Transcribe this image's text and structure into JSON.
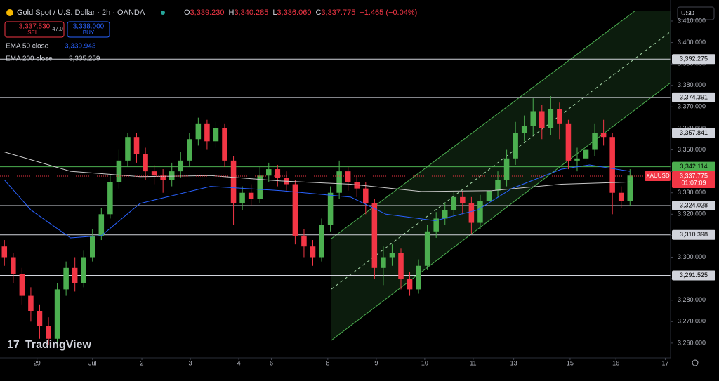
{
  "header": {
    "title": "Gold Spot / U.S. Dollar · 2h · OANDA",
    "ohlc": [
      {
        "k": "O",
        "v": "3,339.230"
      },
      {
        "k": "H",
        "v": "3,340.285"
      },
      {
        "k": "L",
        "v": "3,336.060"
      },
      {
        "k": "C",
        "v": "3,337.775"
      }
    ],
    "change": "−1.465 (−0.04%)",
    "sell_price": "3,337.530",
    "sell": "SELL",
    "spread": "47.0",
    "buy_price": "3,338.000",
    "buy": "BUY",
    "currency": "USD",
    "watermark": "TradingView"
  },
  "chart_data": {
    "type": "candlestick",
    "up_color": "#4caf50",
    "down_color": "#f23645",
    "candles": [
      [
        3305,
        3308,
        3296,
        3300
      ],
      [
        3300,
        3302,
        3288,
        3292
      ],
      [
        3292,
        3295,
        3278,
        3282
      ],
      [
        3282,
        3286,
        3270,
        3275
      ],
      [
        3275,
        3278,
        3262,
        3268
      ],
      [
        3268,
        3272,
        3259,
        3262
      ],
      [
        3262,
        3288,
        3260,
        3285
      ],
      [
        3285,
        3298,
        3282,
        3295
      ],
      [
        3295,
        3300,
        3284,
        3288
      ],
      [
        3288,
        3303,
        3286,
        3300
      ],
      [
        3300,
        3313,
        3298,
        3310
      ],
      [
        3310,
        3323,
        3308,
        3320
      ],
      [
        3320,
        3338,
        3318,
        3335
      ],
      [
        3335,
        3350,
        3332,
        3345
      ],
      [
        3345,
        3358,
        3342,
        3356
      ],
      [
        3356,
        3358,
        3344,
        3348
      ],
      [
        3348,
        3351,
        3336,
        3340
      ],
      [
        3340,
        3343,
        3334,
        3338
      ],
      [
        3338,
        3341,
        3330,
        3336
      ],
      [
        3336,
        3344,
        3333,
        3340
      ],
      [
        3340,
        3349,
        3337,
        3345
      ],
      [
        3345,
        3358,
        3342,
        3355
      ],
      [
        3355,
        3365,
        3352,
        3362
      ],
      [
        3362,
        3364,
        3350,
        3354
      ],
      [
        3354,
        3363,
        3351,
        3360
      ],
      [
        3360,
        3362,
        3342,
        3345
      ],
      [
        3345,
        3347,
        3315,
        3325
      ],
      [
        3325,
        3333,
        3322,
        3330
      ],
      [
        3330,
        3334,
        3324,
        3327
      ],
      [
        3327,
        3342,
        3325,
        3338
      ],
      [
        3338,
        3344,
        3335,
        3341
      ],
      [
        3341,
        3343,
        3333,
        3337
      ],
      [
        3337,
        3340,
        3331,
        3334
      ],
      [
        3334,
        3336,
        3306,
        3310
      ],
      [
        3310,
        3313,
        3300,
        3305
      ],
      [
        3305,
        3308,
        3296,
        3300
      ],
      [
        3300,
        3318,
        3298,
        3315
      ],
      [
        3315,
        3333,
        3312,
        3330
      ],
      [
        3330,
        3345,
        3327,
        3340
      ],
      [
        3340,
        3342,
        3331,
        3335
      ],
      [
        3335,
        3338,
        3328,
        3332
      ],
      [
        3332,
        3335,
        3320,
        3325
      ],
      [
        3325,
        3327,
        3290,
        3295
      ],
      [
        3295,
        3305,
        3287,
        3300
      ],
      [
        3300,
        3306,
        3296,
        3302
      ],
      [
        3302,
        3304,
        3285,
        3290
      ],
      [
        3290,
        3293,
        3282,
        3285
      ],
      [
        3285,
        3299,
        3283,
        3296
      ],
      [
        3296,
        3315,
        3294,
        3312
      ],
      [
        3312,
        3321,
        3309,
        3318
      ],
      [
        3318,
        3325,
        3315,
        3322
      ],
      [
        3322,
        3331,
        3319,
        3328
      ],
      [
        3328,
        3331,
        3320,
        3325
      ],
      [
        3325,
        3328,
        3311,
        3316
      ],
      [
        3316,
        3329,
        3313,
        3326
      ],
      [
        3326,
        3334,
        3323,
        3331
      ],
      [
        3331,
        3340,
        3328,
        3336
      ],
      [
        3336,
        3350,
        3333,
        3346
      ],
      [
        3346,
        3363,
        3343,
        3358
      ],
      [
        3358,
        3366,
        3354,
        3361
      ],
      [
        3361,
        3374,
        3357,
        3368
      ],
      [
        3368,
        3371,
        3355,
        3360
      ],
      [
        3360,
        3375,
        3357,
        3369
      ],
      [
        3369,
        3372,
        3355,
        3362
      ],
      [
        3362,
        3364,
        3341,
        3345
      ],
      [
        3345,
        3351,
        3340,
        3346
      ],
      [
        3346,
        3353,
        3343,
        3350
      ],
      [
        3350,
        3362,
        3347,
        3358
      ],
      [
        3358,
        3364,
        3352,
        3356
      ],
      [
        3356,
        3358,
        3320,
        3330
      ],
      [
        3330,
        3333,
        3323,
        3326
      ],
      [
        3326,
        3341,
        3324,
        3338
      ]
    ],
    "series": [
      {
        "name": "EMA 50 close",
        "last": "3,339.943",
        "color": "#2962ff",
        "x": [
          0,
          3,
          7.5,
          11,
          15.4,
          23.4,
          31.4,
          39.3,
          43.3,
          48.9,
          53.7,
          57.6,
          63.2,
          66.4,
          71
        ],
        "values": [
          3336,
          3322,
          3309,
          3310,
          3325,
          3333,
          3331,
          3328,
          3320,
          3317,
          3322,
          3332,
          3341,
          3343,
          3340
        ]
      },
      {
        "name": "EMA 200 close",
        "last": "3,335.259",
        "color": "#c8c8c8",
        "x": [
          0,
          7.5,
          15.4,
          23.4,
          31.4,
          39.3,
          47.3,
          55.3,
          63.2,
          71
        ],
        "values": [
          3349,
          3340,
          3337.5,
          3338,
          3335.5,
          3334,
          3330.6,
          3331,
          3334,
          3335
        ]
      }
    ],
    "xlim": [
      -0.5,
      75.6
    ],
    "ylim": [
      3253.1,
      3419.8
    ],
    "xticks": [
      {
        "value": 3.7,
        "label": "29"
      },
      {
        "value": 10,
        "label": "Jul"
      },
      {
        "value": 15.6,
        "label": "2"
      },
      {
        "value": 21.1,
        "label": "3"
      },
      {
        "value": 26.6,
        "label": "4"
      },
      {
        "value": 30.3,
        "label": "6"
      },
      {
        "value": 36.7,
        "label": "8"
      },
      {
        "value": 42.2,
        "label": "9"
      },
      {
        "value": 47.7,
        "label": "10"
      },
      {
        "value": 53.2,
        "label": "11"
      },
      {
        "value": 57.8,
        "label": "13"
      },
      {
        "value": 64.2,
        "label": "15"
      },
      {
        "value": 69.4,
        "label": "16"
      },
      {
        "value": 75,
        "label": "17"
      }
    ],
    "yticks": [
      {
        "value": 3260,
        "label": "3,260.000"
      },
      {
        "value": 3270,
        "label": "3,270.000"
      },
      {
        "value": 3280,
        "label": "3,280.000"
      },
      {
        "value": 3290,
        "label": "3,290.000"
      },
      {
        "value": 3300,
        "label": "3,300.000"
      },
      {
        "value": 3310,
        "label": "3,310.000"
      },
      {
        "value": 3320,
        "label": "3,320.000"
      },
      {
        "value": 3330,
        "label": "3,330.000"
      },
      {
        "value": 3340,
        "label": "3,340.000"
      },
      {
        "value": 3350,
        "label": "3,350.000"
      },
      {
        "value": 3360,
        "label": "3,360.000"
      },
      {
        "value": 3370,
        "label": "3,370.000"
      },
      {
        "value": 3380,
        "label": "3,380.000"
      },
      {
        "value": 3390,
        "label": "3,390.000"
      },
      {
        "value": 3400,
        "label": "3,400.000"
      },
      {
        "value": 3410,
        "label": "3,410.000"
      }
    ],
    "levels": [
      {
        "value": 3392.275,
        "label": "3,392.275",
        "color": "#d1d4dc"
      },
      {
        "value": 3374.391,
        "label": "3,374.391",
        "color": "#d1d4dc"
      },
      {
        "value": 3357.841,
        "label": "3,357.841",
        "color": "#d1d4dc"
      },
      {
        "value": 3342.114,
        "label": "3,342.114",
        "color": "#4caf50"
      },
      {
        "value": 3324.028,
        "label": "3,324.028",
        "color": "#d1d4dc"
      },
      {
        "value": 3310.398,
        "label": "3,310.398",
        "color": "#d1d4dc"
      },
      {
        "value": 3291.525,
        "label": "3,291.525",
        "color": "#d1d4dc"
      }
    ],
    "current": {
      "value": 3337.775,
      "label": "3,337.775",
      "symbol": "XAUUSD",
      "countdown": "01:07:09",
      "color": "#f23645"
    }
  }
}
